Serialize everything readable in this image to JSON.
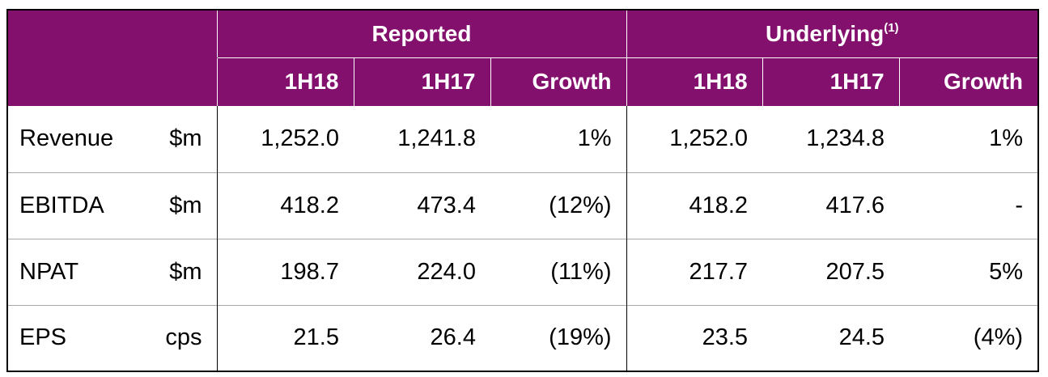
{
  "table": {
    "groups": [
      {
        "label": "Reported",
        "sup": ""
      },
      {
        "label": "Underlying",
        "sup": "(1)"
      }
    ],
    "subheaders": [
      "1H18",
      "1H17",
      "Growth",
      "1H18",
      "1H17",
      "Growth"
    ],
    "rows": [
      {
        "metric": "Revenue",
        "unit": "$m",
        "values": [
          "1,252.0",
          "1,241.8",
          "1%",
          "1,252.0",
          "1,234.8",
          "1%"
        ]
      },
      {
        "metric": "EBITDA",
        "unit": "$m",
        "values": [
          "418.2",
          "473.4",
          "(12%)",
          "418.2",
          "417.6",
          "-"
        ]
      },
      {
        "metric": "NPAT",
        "unit": "$m",
        "values": [
          "198.7",
          "224.0",
          "(11%)",
          "217.7",
          "207.5",
          "5%"
        ]
      },
      {
        "metric": "EPS",
        "unit": "cps",
        "values": [
          "21.5",
          "26.4",
          "(19%)",
          "23.5",
          "24.5",
          "(4%)"
        ]
      }
    ]
  },
  "colors": {
    "header_bg": "#84106e",
    "header_text": "#ffffff",
    "row_divider": "#a8a8a8",
    "border": "#000000"
  }
}
